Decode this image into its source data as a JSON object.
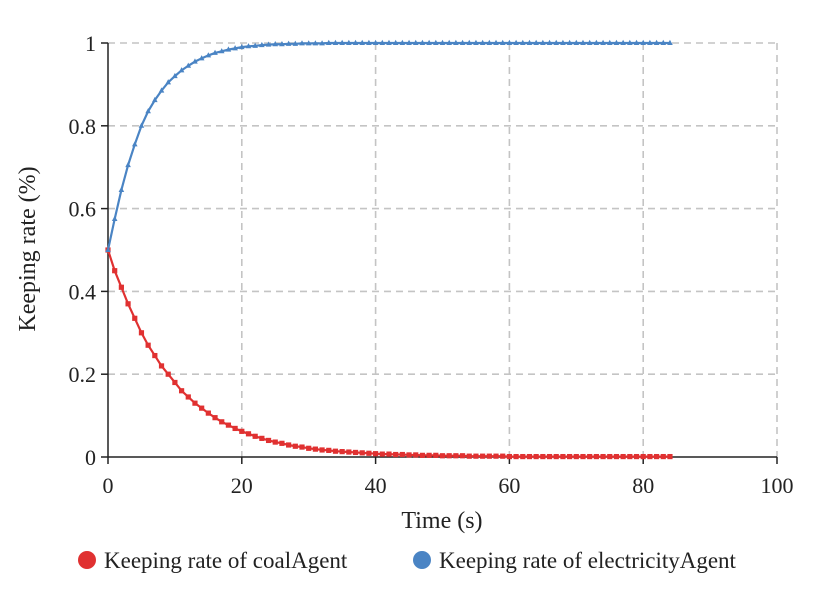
{
  "chart_data": {
    "type": "line",
    "title": "",
    "xlabel": "Time (s)",
    "ylabel": "Keeping rate (%)",
    "xlim": [
      0,
      100
    ],
    "ylim": [
      0,
      1
    ],
    "x_ticks": [
      0,
      20,
      40,
      60,
      80,
      100
    ],
    "y_ticks": [
      0,
      0.2,
      0.4,
      0.6,
      0.8,
      1
    ],
    "x_tick_labels": [
      "0",
      "20",
      "40",
      "60",
      "80",
      "100"
    ],
    "y_tick_labels": [
      "0",
      "0.2",
      "0.4",
      "0.6",
      "0.8",
      "1"
    ],
    "grid": true,
    "legend_position": "bottom",
    "series": [
      {
        "name": "Keeping rate of coalAgent",
        "color": "#e03131",
        "marker": "square",
        "x": [
          0,
          1,
          2,
          3,
          4,
          5,
          6,
          7,
          8,
          9,
          10,
          11,
          12,
          13,
          14,
          15,
          16,
          17,
          18,
          19,
          20,
          21,
          22,
          23,
          24,
          25,
          26,
          27,
          28,
          29,
          30,
          31,
          32,
          33,
          34,
          35,
          36,
          37,
          38,
          39,
          40,
          41,
          42,
          43,
          44,
          45,
          46,
          47,
          48,
          49,
          50,
          51,
          52,
          53,
          54,
          55,
          56,
          57,
          58,
          59,
          60,
          61,
          62,
          63,
          64,
          65,
          66,
          67,
          68,
          69,
          70,
          71,
          72,
          73,
          74,
          75,
          76,
          77,
          78,
          79,
          80,
          81,
          82,
          83,
          84
        ],
        "y": [
          0.5,
          0.45,
          0.41,
          0.37,
          0.335,
          0.3,
          0.27,
          0.245,
          0.22,
          0.2,
          0.18,
          0.16,
          0.145,
          0.13,
          0.118,
          0.106,
          0.095,
          0.085,
          0.077,
          0.069,
          0.062,
          0.056,
          0.05,
          0.045,
          0.04,
          0.036,
          0.033,
          0.029,
          0.026,
          0.024,
          0.021,
          0.019,
          0.017,
          0.016,
          0.014,
          0.013,
          0.012,
          0.011,
          0.01,
          0.009,
          0.008,
          0.007,
          0.007,
          0.006,
          0.006,
          0.005,
          0.005,
          0.004,
          0.004,
          0.004,
          0.003,
          0.003,
          0.003,
          0.003,
          0.002,
          0.002,
          0.002,
          0.002,
          0.002,
          0.002,
          0.001,
          0.001,
          0.001,
          0.001,
          0.001,
          0.001,
          0.001,
          0.001,
          0.001,
          0.001,
          0.001,
          0.001,
          0.001,
          0.001,
          0.001,
          0.001,
          0.001,
          0.001,
          0.001,
          0.001,
          0.001,
          0.001,
          0.001,
          0.001,
          0.001
        ]
      },
      {
        "name": "Keeping rate of electricityAgent",
        "color": "#4a84c4",
        "marker": "triangle",
        "x": [
          0,
          1,
          2,
          3,
          4,
          5,
          6,
          7,
          8,
          9,
          10,
          11,
          12,
          13,
          14,
          15,
          16,
          17,
          18,
          19,
          20,
          21,
          22,
          23,
          24,
          25,
          26,
          27,
          28,
          29,
          30,
          31,
          32,
          33,
          34,
          35,
          36,
          37,
          38,
          39,
          40,
          41,
          42,
          43,
          44,
          45,
          46,
          47,
          48,
          49,
          50,
          51,
          52,
          53,
          54,
          55,
          56,
          57,
          58,
          59,
          60,
          61,
          62,
          63,
          64,
          65,
          66,
          67,
          68,
          69,
          70,
          71,
          72,
          73,
          74,
          75,
          76,
          77,
          78,
          79,
          80,
          81,
          82,
          83,
          84
        ],
        "y": [
          0.5,
          0.575,
          0.645,
          0.705,
          0.755,
          0.8,
          0.835,
          0.862,
          0.885,
          0.905,
          0.92,
          0.934,
          0.945,
          0.955,
          0.963,
          0.97,
          0.976,
          0.98,
          0.984,
          0.987,
          0.99,
          0.992,
          0.993,
          0.995,
          0.996,
          0.997,
          0.997,
          0.998,
          0.998,
          0.999,
          0.999,
          0.999,
          0.999,
          1,
          1,
          1,
          1,
          1,
          1,
          1,
          1,
          1,
          1,
          1,
          1,
          1,
          1,
          1,
          1,
          1,
          1,
          1,
          1,
          1,
          1,
          1,
          1,
          1,
          1,
          1,
          1,
          1,
          1,
          1,
          1,
          1,
          1,
          1,
          1,
          1,
          1,
          1,
          1,
          1,
          1,
          1,
          1,
          1,
          1,
          1,
          1,
          1,
          1,
          1,
          1
        ]
      }
    ]
  }
}
